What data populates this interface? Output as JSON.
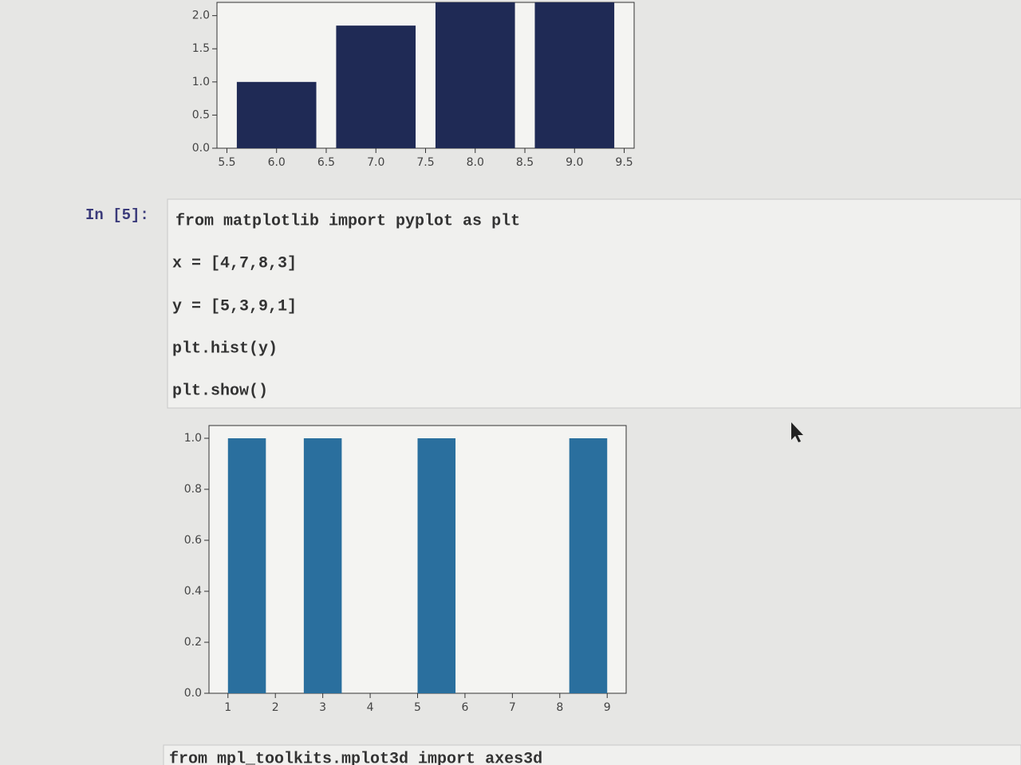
{
  "chart_data": [
    {
      "type": "bar",
      "x": [
        6,
        7,
        8,
        9
      ],
      "values": [
        1,
        1.85,
        2.2,
        2.2
      ],
      "bar_width": 0.8,
      "color": "#1f2a55",
      "xlim": [
        5.4,
        9.6
      ],
      "ylim": [
        0,
        2.2
      ],
      "xticks": [
        5.5,
        {
          "value": 6,
          "label": "6.0"
        },
        6.5,
        {
          "value": 7,
          "label": "7.0"
        },
        7.5,
        {
          "value": 8,
          "label": "8.0"
        },
        8.5,
        {
          "value": 9,
          "label": "9.0"
        },
        9.5
      ],
      "yticks": [
        {
          "value": 0,
          "label": "0.0"
        },
        0.5,
        {
          "value": 1,
          "label": "1.0"
        },
        1.5,
        {
          "value": 2,
          "label": "2.0"
        }
      ]
    },
    {
      "type": "histogram",
      "bins": [
        1,
        1.8,
        2.6,
        3.4,
        4.2,
        5,
        5.8,
        6.6,
        7.4,
        8.2,
        9
      ],
      "values": [
        1,
        0,
        1,
        0,
        0,
        1,
        0,
        0,
        0,
        1
      ],
      "color": "#2a6f9e",
      "xlim": [
        0.6,
        9.4
      ],
      "ylim": [
        0,
        1.05
      ],
      "xticks": [
        1,
        2,
        3,
        4,
        5,
        6,
        7,
        8,
        9
      ],
      "yticks": [
        {
          "value": 0,
          "label": "0.0"
        },
        {
          "value": 0.2,
          "label": "0.2"
        },
        {
          "value": 0.4,
          "label": "0.4"
        },
        {
          "value": 0.6,
          "label": "0.6"
        },
        {
          "value": 0.8,
          "label": "0.8"
        },
        {
          "value": 1,
          "label": "1.0"
        }
      ]
    }
  ],
  "cells": [
    {
      "prompt": "In [5]:",
      "code": [
        "from matplotlib import pyplot as plt",
        "x = [4,7,8,3]",
        "y = [5,3,9,1]",
        "plt.hist(y)",
        "plt.show()"
      ]
    },
    {
      "code": [
        "from mpl_toolkits.mplot3d import axes3d"
      ]
    }
  ]
}
